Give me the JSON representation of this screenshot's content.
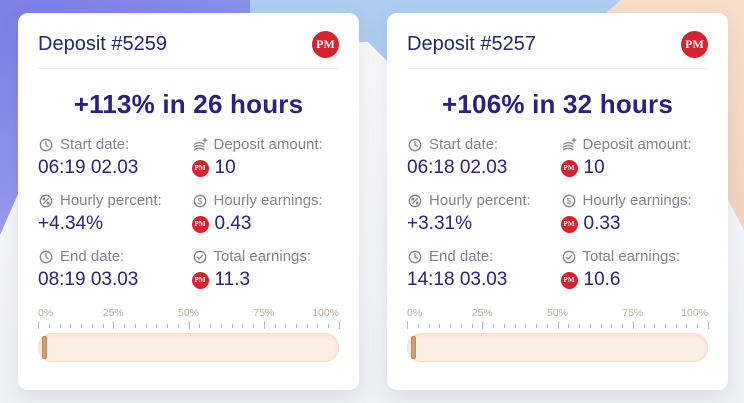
{
  "pm_badge": "PM",
  "theme": {
    "colors": {
      "accent-red": "#d6232e",
      "title": "#232a66",
      "headline": "#2d2080",
      "value": "#2d2374",
      "label": "#84848e",
      "divider": "#ededf2",
      "bar-fill": "#fdeee3",
      "bar-border": "#f6ddcc",
      "handle": "#cda06e",
      "handle-border": "#b98e59",
      "ruler-label": "#b6afa7",
      "tick": "#bab7b4"
    }
  },
  "cards": [
    {
      "title": "Deposit #5259",
      "headline": "+113% in 26 hours",
      "stats": [
        {
          "icon": "clock-icon",
          "label": "Start date:",
          "value": "06:19 02.03"
        },
        {
          "icon": "deposit-stack-icon",
          "label": "Deposit amount:",
          "value": "10",
          "currency_badge": "PM"
        },
        {
          "icon": "percent-seal-icon",
          "label": "Hourly percent:",
          "value": "+4.34%"
        },
        {
          "icon": "dollar-seal-icon",
          "label": "Hourly earnings:",
          "value": "0.43",
          "currency_badge": "PM"
        },
        {
          "icon": "clock-icon",
          "label": "End date:",
          "value": "08:19 03.03"
        },
        {
          "icon": "check-seal-icon",
          "label": "Total earnings:",
          "value": "11.3",
          "currency_badge": "PM"
        }
      ],
      "ruler": {
        "labels": [
          "0%",
          "25%",
          "50%",
          "75%",
          "100%"
        ],
        "progress_percent": 1
      }
    },
    {
      "title": "Deposit #5257",
      "headline": "+106% in 32 hours",
      "stats": [
        {
          "icon": "clock-icon",
          "label": "Start date:",
          "value": "06:18 02.03"
        },
        {
          "icon": "deposit-stack-icon",
          "label": "Deposit amount:",
          "value": "10",
          "currency_badge": "PM"
        },
        {
          "icon": "percent-seal-icon",
          "label": "Hourly percent:",
          "value": "+3.31%"
        },
        {
          "icon": "dollar-seal-icon",
          "label": "Hourly earnings:",
          "value": "0.33",
          "currency_badge": "PM"
        },
        {
          "icon": "clock-icon",
          "label": "End date:",
          "value": "14:18 03.03"
        },
        {
          "icon": "check-seal-icon",
          "label": "Total earnings:",
          "value": "10.6",
          "currency_badge": "PM"
        }
      ],
      "ruler": {
        "labels": [
          "0%",
          "25%",
          "50%",
          "75%",
          "100%"
        ],
        "progress_percent": 1
      }
    }
  ]
}
